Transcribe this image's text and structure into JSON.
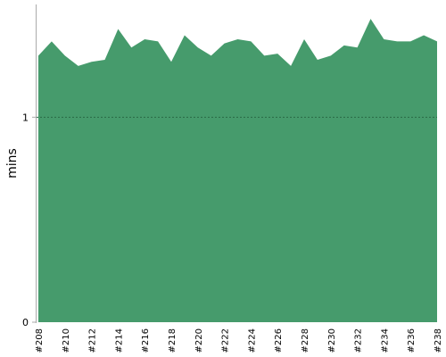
{
  "chart_data": {
    "type": "area",
    "y_label": "mins",
    "categories": [
      "#208",
      null,
      "#210",
      null,
      "#212",
      null,
      "#214",
      null,
      "#216",
      null,
      "#218",
      null,
      "#220",
      null,
      "#222",
      null,
      "#224",
      null,
      "#226",
      null,
      "#228",
      null,
      "#230",
      null,
      "#232",
      null,
      "#234",
      null,
      "#236",
      null,
      "#238"
    ],
    "values": [
      1.3,
      1.37,
      1.3,
      1.25,
      1.27,
      1.28,
      1.43,
      1.34,
      1.38,
      1.37,
      1.27,
      1.4,
      1.34,
      1.3,
      1.36,
      1.38,
      1.37,
      1.3,
      1.31,
      1.25,
      1.38,
      1.28,
      1.3,
      1.35,
      1.34,
      1.48,
      1.38,
      1.37,
      1.37,
      1.4,
      1.37
    ],
    "color": "#469b6c",
    "ylim": [
      0,
      1.55
    ],
    "yticks": [
      0,
      1
    ],
    "grid": true
  }
}
